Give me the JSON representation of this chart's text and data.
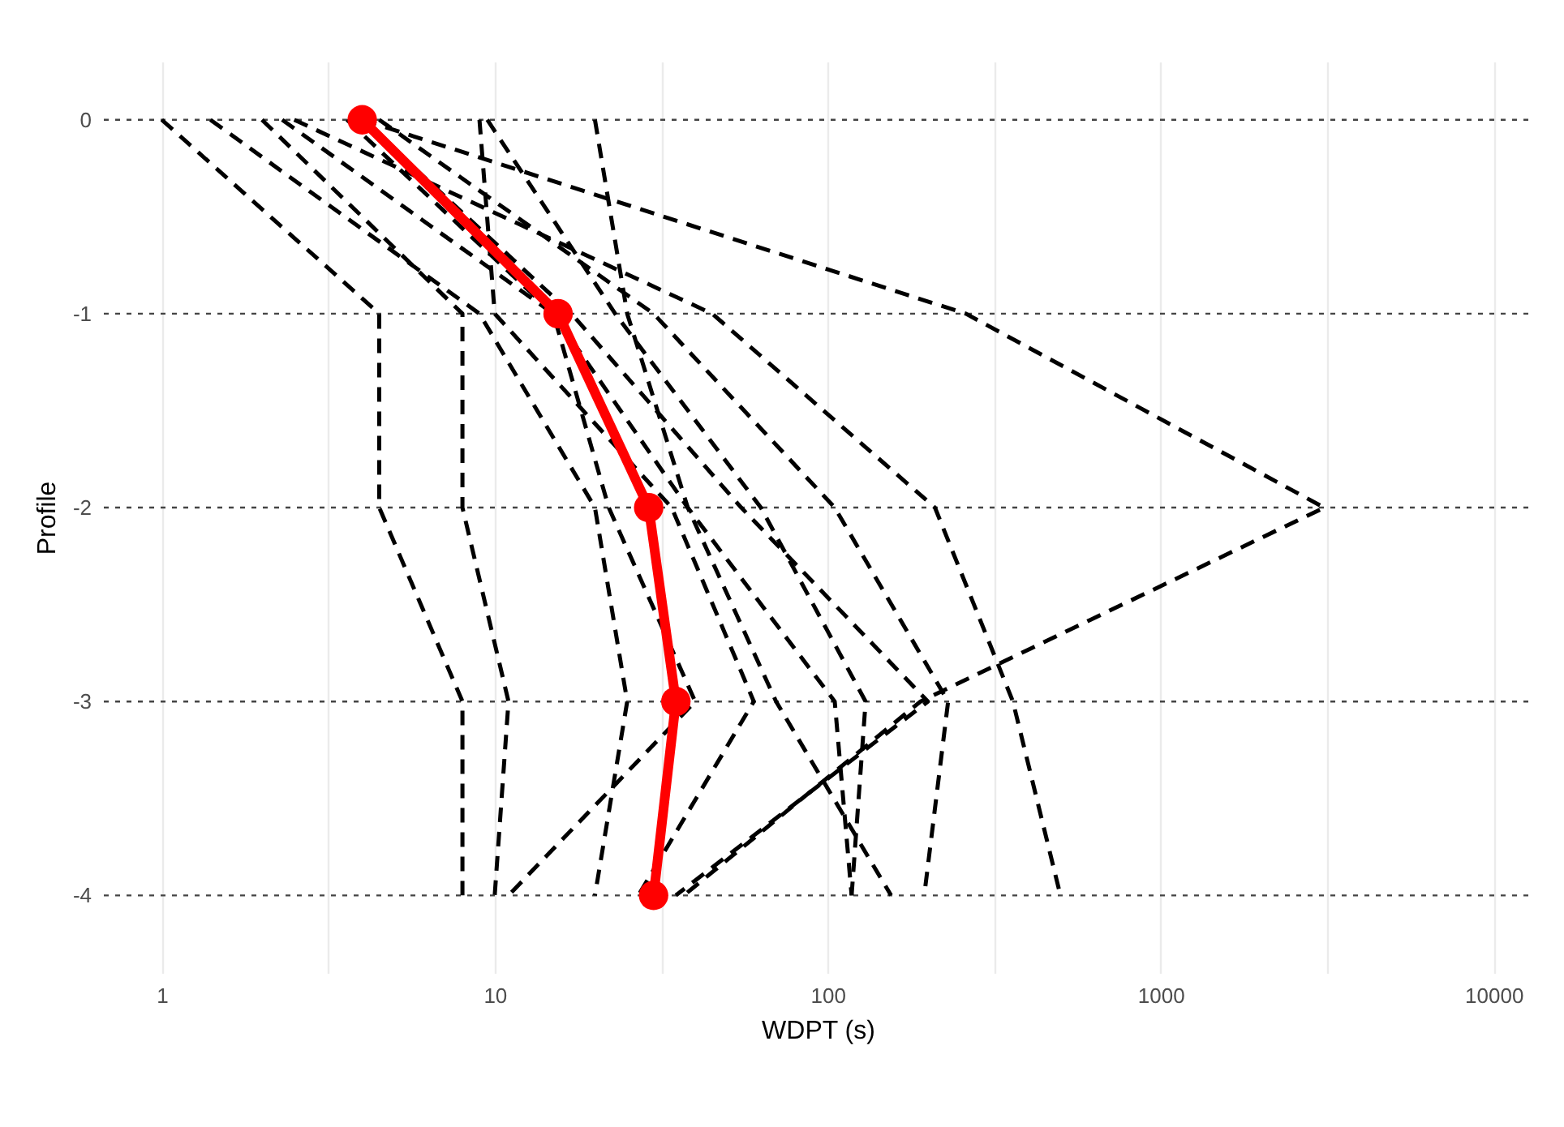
{
  "chart_data": {
    "type": "line",
    "xlabel": "WDPT (s)",
    "ylabel": "Profile",
    "log": "x",
    "grid": "x",
    "xlim": [
      0.67,
      13000
    ],
    "xticks": [
      1,
      {
        "value": 3.162,
        "label": null
      },
      10,
      {
        "value": 31.62,
        "label": null
      },
      100,
      {
        "value": 316.2,
        "label": null
      },
      1000,
      {
        "value": 3162,
        "label": null
      },
      10000
    ],
    "ylim": [
      -4.4,
      0.3
    ],
    "yticks": [
      0,
      -1,
      -2,
      -3,
      -4
    ],
    "ref_lines": [
      {
        "axis": "y",
        "value": 0,
        "color": "#444444",
        "line_style": "dotted"
      },
      {
        "axis": "y",
        "value": -1,
        "color": "#444444",
        "line_style": "dotted"
      },
      {
        "axis": "y",
        "value": -2,
        "color": "#444444",
        "line_style": "dotted"
      },
      {
        "axis": "y",
        "value": -3,
        "color": "#444444",
        "line_style": "dotted"
      },
      {
        "axis": "y",
        "value": -4,
        "color": "#444444",
        "line_style": "dotted"
      }
    ],
    "series": [
      {
        "color": "#000000",
        "line_style": "dashed",
        "marker": "none",
        "x": [
          1,
          4.5,
          4.5,
          8,
          8
        ],
        "values": [
          0,
          -1,
          -2,
          -3,
          -4
        ]
      },
      {
        "color": "#000000",
        "line_style": "dashed",
        "marker": "none",
        "x": [
          2,
          8,
          8,
          11,
          10
        ],
        "values": [
          0,
          -1,
          -2,
          -3,
          -4
        ]
      },
      {
        "color": "#000000",
        "line_style": "dashed",
        "marker": "none",
        "x": [
          1.4,
          9,
          20,
          25,
          20
        ],
        "values": [
          0,
          -1,
          -2,
          -3,
          -4
        ]
      },
      {
        "color": "#000000",
        "line_style": "dashed",
        "marker": "none",
        "x": [
          2.3,
          15,
          22,
          40,
          11
        ],
        "values": [
          0,
          -1,
          -2,
          -3,
          -4
        ]
      },
      {
        "color": "#000000",
        "line_style": "dashed",
        "marker": "none",
        "x": [
          9,
          10,
          34,
          60,
          27
        ],
        "values": [
          0,
          -1,
          -2,
          -3,
          -4
        ]
      },
      {
        "color": "#000000",
        "line_style": "dashed",
        "marker": "none",
        "x": [
          4,
          17,
          55,
          200,
          35
        ],
        "values": [
          0,
          -1,
          -2,
          -3,
          -4
        ]
      },
      {
        "color": "#000000",
        "line_style": "dashed",
        "marker": "none",
        "x": [
          9.5,
          23,
          63,
          130,
          118
        ],
        "values": [
          0,
          -1,
          -2,
          -3,
          -4
        ]
      },
      {
        "color": "#000000",
        "line_style": "dashed",
        "marker": "none",
        "x": [
          20,
          25,
          38,
          70,
          155
        ],
        "values": [
          0,
          -1,
          -2,
          -3,
          -4
        ]
      },
      {
        "color": "#000000",
        "line_style": "dashed",
        "marker": "none",
        "x": [
          4.5,
          30,
          105,
          230,
          195
        ],
        "values": [
          0,
          -1,
          -2,
          -3,
          -4
        ]
      },
      {
        "color": "#000000",
        "line_style": "dashed",
        "marker": "none",
        "x": [
          4,
          260,
          3100,
          190,
          37
        ],
        "values": [
          0,
          -1,
          -2,
          -3,
          -4
        ]
      },
      {
        "color": "#000000",
        "line_style": "dashed",
        "marker": "none",
        "x": [
          2.5,
          45,
          210,
          360,
          500
        ],
        "values": [
          0,
          -1,
          -2,
          -3,
          -4
        ]
      },
      {
        "color": "#000000",
        "line_style": "dashed",
        "marker": "none",
        "x": [
          3.6,
          15,
          38,
          105,
          118
        ],
        "values": [
          0,
          -1,
          -2,
          -3,
          -4
        ]
      },
      {
        "color": "#ff0000",
        "line_style": "solid",
        "marker": "circle",
        "x": [
          4,
          15.5,
          29,
          35,
          30
        ],
        "values": [
          0,
          -1,
          -2,
          -3,
          -4
        ]
      }
    ]
  }
}
